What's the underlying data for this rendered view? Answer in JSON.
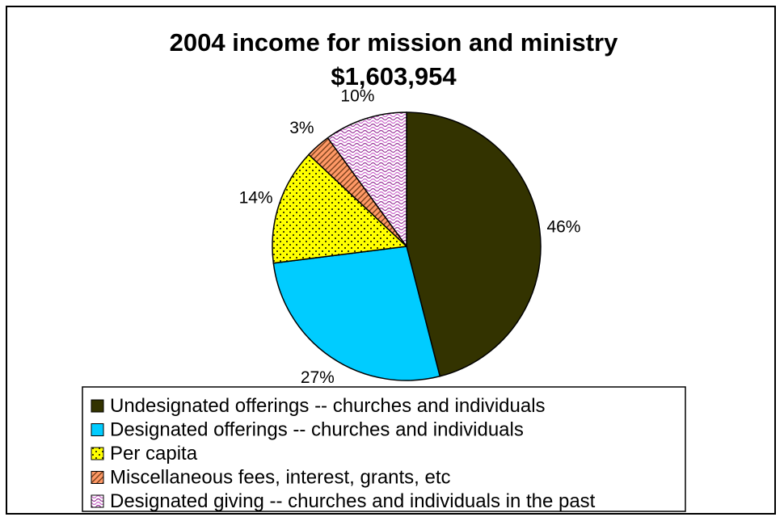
{
  "chart_data": {
    "type": "pie",
    "title": "2004 income for mission and ministry",
    "subtitle": "$1,603,954",
    "slices": [
      {
        "name": "Undesignated offerings -- churches and individuals",
        "value": 46,
        "label": "46%",
        "color": "#333300",
        "pattern": "solid"
      },
      {
        "name": "Designated offerings -- churches and individuals",
        "value": 27,
        "label": "27%",
        "color": "#00ccff",
        "pattern": "solid"
      },
      {
        "name": "Per capita",
        "value": 14,
        "label": "14%",
        "color": "#ffff00",
        "pattern": "dots"
      },
      {
        "name": "Miscellaneous fees, interest, grants, etc",
        "value": 3,
        "label": "3%",
        "color": "#ff9966",
        "pattern": "diagonal"
      },
      {
        "name": "Designated giving -- churches and individuals in the past",
        "value": 10,
        "label": "10%",
        "color": "#cc99cc",
        "pattern": "wave"
      }
    ],
    "start_angle_deg": 0,
    "direction": "clockwise",
    "legend_position": "bottom"
  }
}
